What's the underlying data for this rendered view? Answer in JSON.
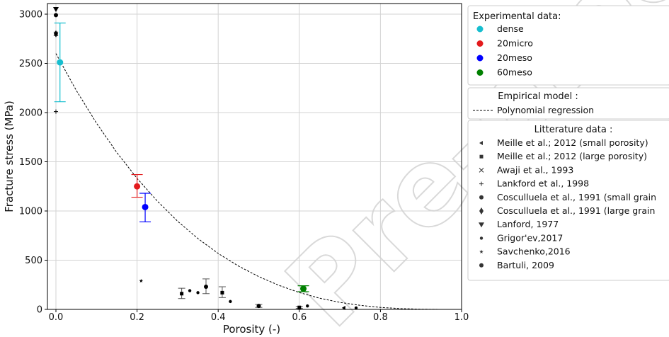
{
  "chart_data": {
    "type": "scatter",
    "xlabel": "Porosity (-)",
    "ylabel": "Fracture stress (MPa)",
    "xlim": [
      0.0,
      1.0
    ],
    "ylim": [
      0,
      3100
    ],
    "x_ticks": [
      "0.0",
      "0.2",
      "0.4",
      "0.6",
      "0.8",
      "1.0"
    ],
    "y_ticks": [
      "0",
      "500",
      "1000",
      "1500",
      "2000",
      "2500",
      "3000"
    ],
    "grid": true,
    "watermark": "Pre-proof",
    "experimental": {
      "title": "Experimental data:",
      "series": [
        {
          "name": "dense",
          "color": "#17becf",
          "x": 0.01,
          "y": 2510,
          "err_low": 2110,
          "err_high": 2910
        },
        {
          "name": "20micro",
          "color": "#e31a1c",
          "x": 0.2,
          "y": 1250,
          "err_low": 1140,
          "err_high": 1370
        },
        {
          "name": "20meso",
          "color": "#0000ff",
          "x": 0.22,
          "y": 1040,
          "err_low": 890,
          "err_high": 1180
        },
        {
          "name": "60meso",
          "color": "#008000",
          "x": 0.61,
          "y": 210,
          "err_low": 180,
          "err_high": 240
        }
      ]
    },
    "empirical": {
      "title": "Empirical model :",
      "label": "Polynomial regression",
      "curve": {
        "x": [
          0.0,
          0.05,
          0.1,
          0.15,
          0.2,
          0.25,
          0.3,
          0.35,
          0.4,
          0.45,
          0.5,
          0.55,
          0.6,
          0.65,
          0.7,
          0.75,
          0.8,
          0.85,
          0.9,
          0.95,
          1.0
        ],
        "y": [
          2600,
          2226,
          1893,
          1595,
          1332,
          1100,
          896,
          720,
          568,
          440,
          333,
          244,
          171,
          114,
          71,
          41,
          20,
          8,
          2,
          0,
          0
        ]
      }
    },
    "literature": {
      "title": "Litterature data :",
      "series": [
        {
          "name": "Meille et al.; 2012 (small porosity)",
          "marker": "tri-left",
          "points": [
            [
              0.71,
              15
            ]
          ]
        },
        {
          "name": "Meille et al.; 2012 (large porosity)",
          "marker": "square",
          "points": [
            [
              0.31,
              160
            ],
            [
              0.41,
              170
            ],
            [
              0.6,
              20
            ]
          ],
          "errors": [
            [
              110,
              215
            ],
            [
              120,
              230
            ],
            [
              10,
              30
            ]
          ]
        },
        {
          "name": "Awaji et al., 1993",
          "marker": "x",
          "points": [
            [
              0.0,
              2800
            ]
          ]
        },
        {
          "name": "Lankford et al., 1998",
          "marker": "plus",
          "points": [
            [
              0.0,
              2010
            ]
          ]
        },
        {
          "name": "Cosculluela et al., 1991 (small grain",
          "marker": "octagon",
          "points": [
            [
              0.37,
              230
            ],
            [
              0.5,
              35
            ]
          ],
          "errors": [
            [
              160,
              310
            ],
            [
              20,
              50
            ]
          ]
        },
        {
          "name": "Cosculluela et al., 1991 (large grain",
          "marker": "diamond",
          "points": [
            [
              0.0,
              2800
            ]
          ]
        },
        {
          "name": "Lanford, 1977",
          "marker": "triangle-down",
          "points": [
            [
              0.0,
              3050
            ]
          ]
        },
        {
          "name": "Grigor'ev,2017",
          "marker": "dot",
          "points": [
            [
              0.33,
              190
            ],
            [
              0.35,
              170
            ],
            [
              0.43,
              80
            ],
            [
              0.62,
              35
            ],
            [
              0.74,
              15
            ]
          ]
        },
        {
          "name": "Savchenko,2016",
          "marker": "star",
          "points": [
            [
              0.21,
              290
            ]
          ]
        },
        {
          "name": "Bartuli, 2009",
          "marker": "big-dot",
          "points": [
            [
              0.0,
              2990
            ]
          ]
        }
      ]
    }
  }
}
